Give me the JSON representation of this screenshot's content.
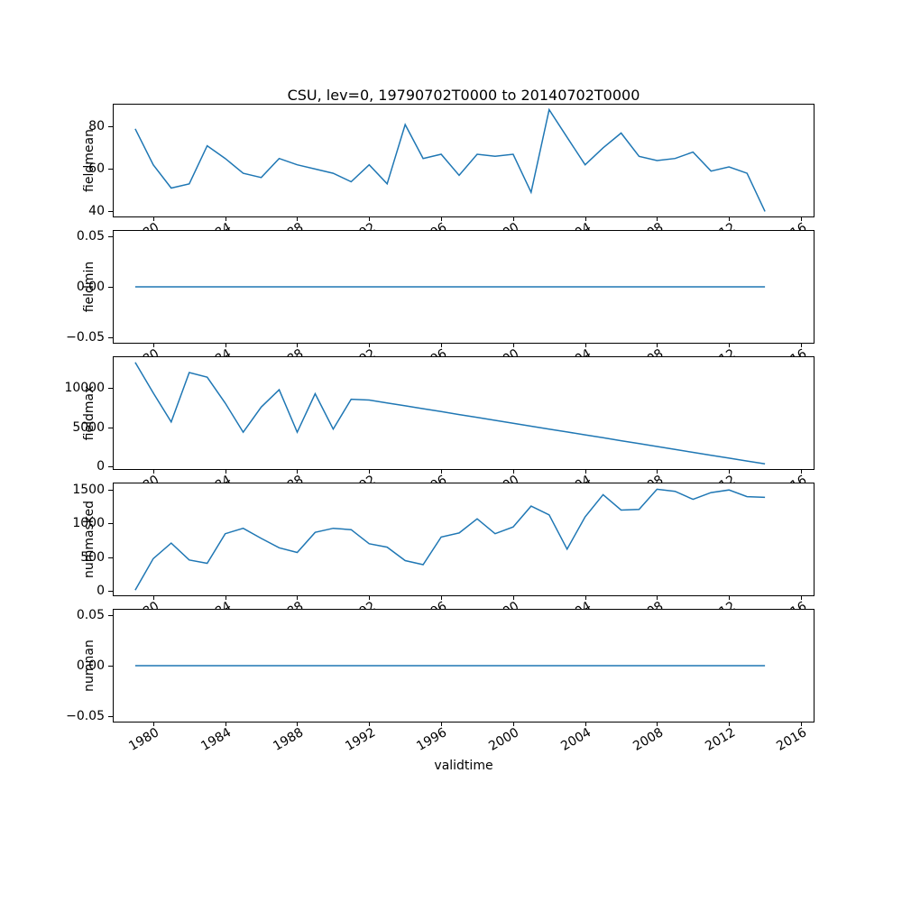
{
  "chart_data": {
    "type": "line",
    "title": "CSU, lev=0, 19790702T0000 to 20140702T0000",
    "xlabel": "validtime",
    "line_color": "#1f77b4",
    "grid": false,
    "legend": "none",
    "xlim": [
      1977.8,
      2016.7
    ],
    "x_ticks": [
      1980,
      1984,
      1988,
      1992,
      1996,
      2000,
      2004,
      2008,
      2012,
      2016
    ],
    "x_tick_labels": [
      "1980",
      "1984",
      "1988",
      "1992",
      "1996",
      "2000",
      "2004",
      "2008",
      "2012",
      "2016"
    ],
    "x_years": [
      1979,
      1980,
      1981,
      1982,
      1983,
      1984,
      1985,
      1986,
      1987,
      1988,
      1989,
      1990,
      1991,
      1992,
      1993,
      1994,
      1995,
      1996,
      1997,
      1998,
      1999,
      2000,
      2001,
      2002,
      2003,
      2004,
      2005,
      2006,
      2007,
      2008,
      2009,
      2010,
      2011,
      2012,
      2013,
      2014
    ],
    "charts": [
      {
        "ylabel": "fieldmean",
        "ylim": [
          37.6,
          90.4
        ],
        "yticks": [
          40,
          60,
          80
        ],
        "ytick_labels": [
          "40",
          "60",
          "80"
        ],
        "values": [
          79,
          62,
          51,
          53,
          71,
          65,
          58,
          56,
          65,
          62,
          60,
          58,
          54,
          62,
          53,
          81,
          65,
          67,
          57,
          67,
          66,
          67,
          49,
          88,
          75,
          62,
          70,
          77,
          66,
          64,
          65,
          68,
          59,
          61,
          58,
          40
        ]
      },
      {
        "ylabel": "fieldmin",
        "ylim": [
          -0.055,
          0.055
        ],
        "yticks": [
          -0.05,
          0.0,
          0.05
        ],
        "ytick_labels": [
          "−0.05",
          "0.00",
          "0.05"
        ],
        "values": [
          0,
          0,
          0,
          0,
          0,
          0,
          0,
          0,
          0,
          0,
          0,
          0,
          0,
          0,
          0,
          0,
          0,
          0,
          0,
          0,
          0,
          0,
          0,
          0,
          0,
          0,
          0,
          0,
          0,
          0,
          0,
          0,
          0,
          0,
          0,
          0
        ]
      },
      {
        "ylabel": "fieldmax",
        "ylim": [
          -290,
          13950
        ],
        "yticks": [
          0,
          5000,
          10000
        ],
        "ytick_labels": [
          "0",
          "5000",
          "10000"
        ],
        "values": [
          13300,
          9400,
          5700,
          12000,
          11400,
          8100,
          4400,
          7600,
          9800,
          4400,
          9300,
          4800,
          8600,
          8500,
          8130,
          7760,
          7390,
          7020,
          6650,
          6280,
          5910,
          5540,
          5170,
          4800,
          4430,
          4060,
          3690,
          3320,
          2950,
          2580,
          2210,
          1840,
          1470,
          1100,
          730,
          360
        ]
      },
      {
        "ylabel": "nummasked",
        "ylim": [
          -66,
          1596
        ],
        "yticks": [
          0,
          500,
          1000,
          1500
        ],
        "ytick_labels": [
          "0",
          "500",
          "1000",
          "1500"
        ],
        "values": [
          10,
          480,
          710,
          460,
          410,
          850,
          930,
          780,
          640,
          570,
          870,
          930,
          910,
          700,
          650,
          450,
          390,
          800,
          860,
          1070,
          850,
          950,
          1260,
          1130,
          620,
          1100,
          1430,
          1200,
          1210,
          1510,
          1480,
          1360,
          1460,
          1500,
          1400,
          1390
        ]
      },
      {
        "ylabel": "numnan",
        "ylim": [
          -0.055,
          0.055
        ],
        "yticks": [
          -0.05,
          0.0,
          0.05
        ],
        "ytick_labels": [
          "−0.05",
          "0.00",
          "0.05"
        ],
        "values": [
          0,
          0,
          0,
          0,
          0,
          0,
          0,
          0,
          0,
          0,
          0,
          0,
          0,
          0,
          0,
          0,
          0,
          0,
          0,
          0,
          0,
          0,
          0,
          0,
          0,
          0,
          0,
          0,
          0,
          0,
          0,
          0,
          0,
          0,
          0,
          0
        ]
      }
    ]
  }
}
